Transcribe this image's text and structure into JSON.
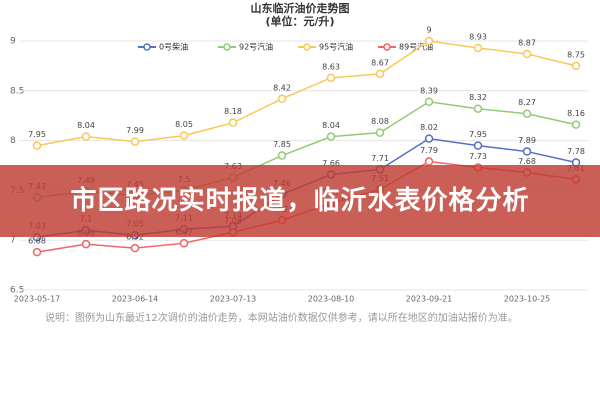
{
  "chart_data": {
    "type": "line",
    "title": "山东临沂油价走势图",
    "subtitle": "(单位：元/升)",
    "categories": [
      "2023-05-17",
      null,
      "2023-06-14",
      null,
      "2023-07-13",
      null,
      "2023-08-10",
      null,
      "2023-09-21",
      null,
      "2023-10-25",
      null
    ],
    "series": [
      {
        "name": "0号柴油",
        "color": "#5470c6",
        "values": [
          7.03,
          7.1,
          7.05,
          7.11,
          7.14,
          7.46,
          7.66,
          7.71,
          8.02,
          7.95,
          7.89,
          7.78
        ]
      },
      {
        "name": "92号汽油",
        "color": "#91cc75",
        "values": [
          7.43,
          7.49,
          7.45,
          7.5,
          7.63,
          7.85,
          8.04,
          8.08,
          8.39,
          8.32,
          8.27,
          8.16
        ]
      },
      {
        "name": "95号汽油",
        "color": "#fac858",
        "values": [
          7.95,
          8.04,
          7.99,
          8.05,
          8.18,
          8.42,
          8.63,
          8.67,
          9,
          8.93,
          8.87,
          8.75
        ]
      },
      {
        "name": "89号汽油",
        "color": "#ee6666",
        "values": [
          6.88,
          6.96,
          6.92,
          6.97,
          7.08,
          7.2,
          7.37,
          7.51,
          7.79,
          7.73,
          7.68,
          7.61
        ]
      }
    ],
    "ylim": [
      6.5,
      9
    ],
    "yticks": [
      6.5,
      7,
      7.5,
      8,
      8.5,
      9
    ],
    "grid": true,
    "note": "说明：图例为山东最近12次调价的油价走势，本网站油价数据仅供参考，请以所在地区的加油站报价为准。"
  },
  "banner_text": "市区路况实时报道，临沂水表价格分析"
}
